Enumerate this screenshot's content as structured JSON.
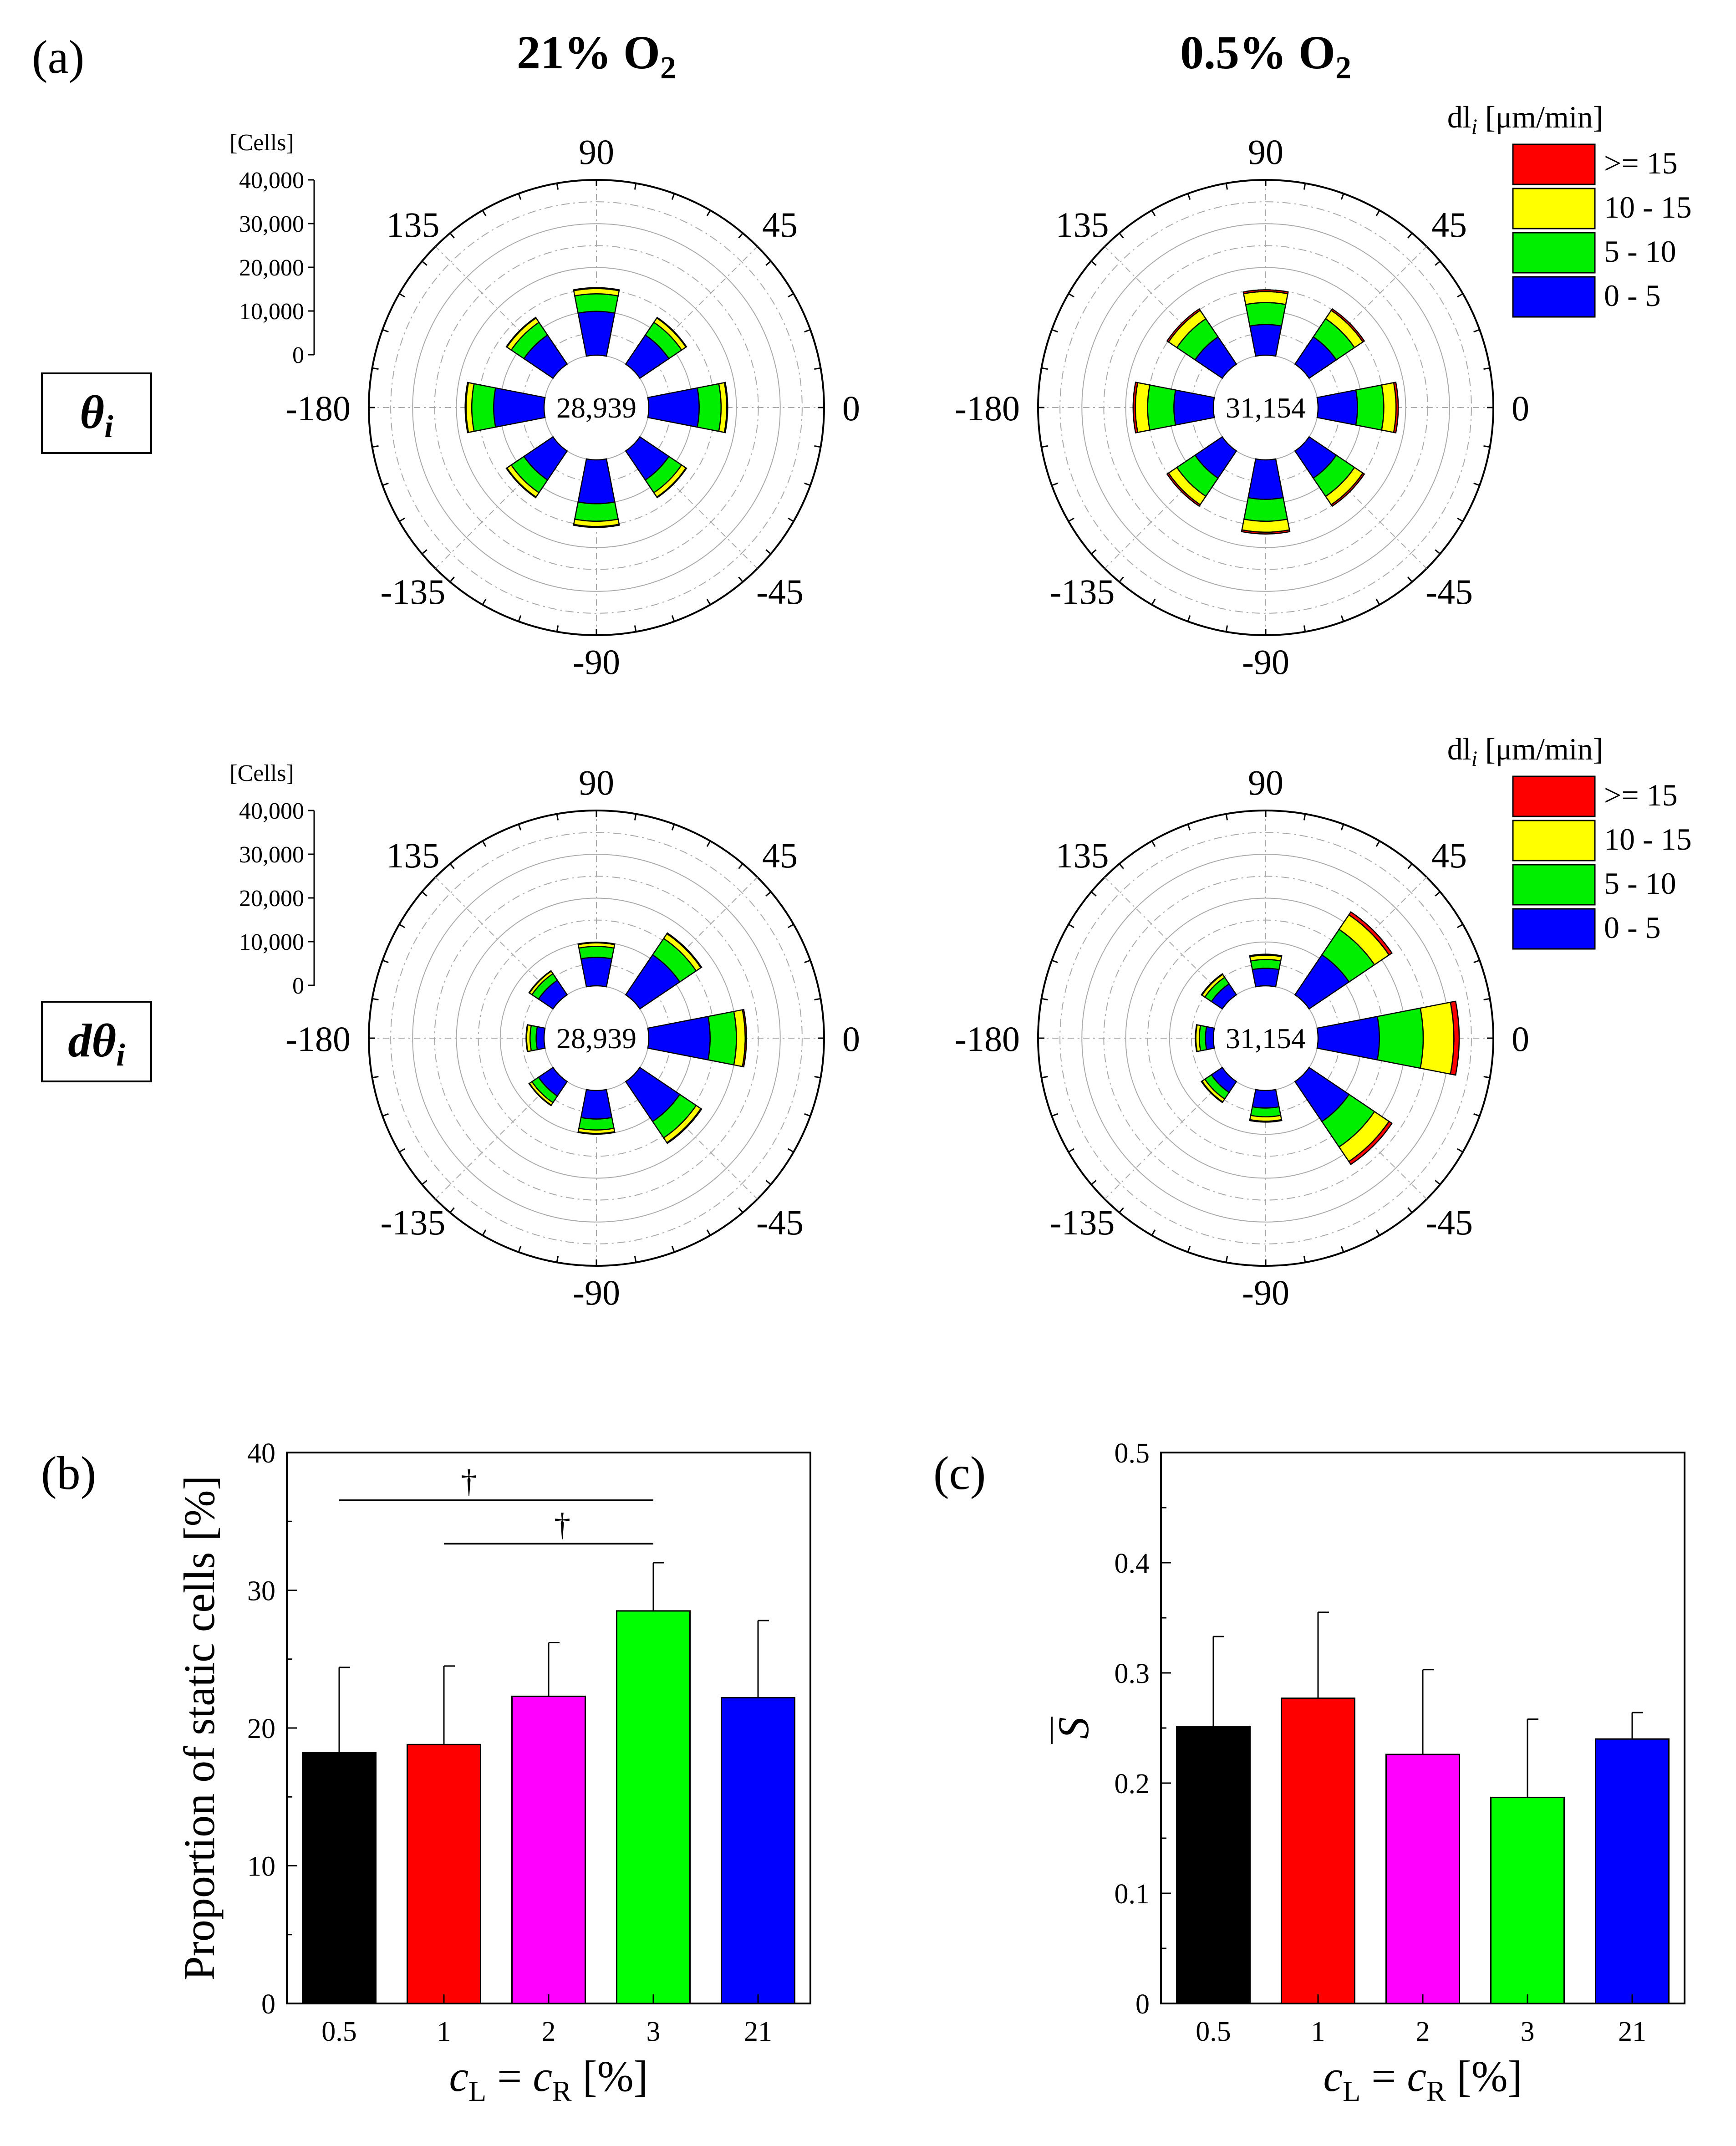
{
  "panel_labels": {
    "a": "(a)",
    "b": "(b)",
    "c": "(c)"
  },
  "columns": [
    "21% O",
    "0.5% O"
  ],
  "row_labels": {
    "theta": "θ",
    "dtheta": "dθ",
    "sub": "i"
  },
  "legend": {
    "title": "dl",
    "title_sub": "i",
    "title_unit": " [μm/min]",
    "items": [
      {
        "label": ">= 15",
        "color": "#ff0000"
      },
      {
        "label": "10 - 15",
        "color": "#ffff00"
      },
      {
        "label": "5 - 10",
        "color": "#00ee00"
      },
      {
        "label": "0 - 5",
        "color": "#0000ff"
      }
    ]
  },
  "polar_scale": {
    "unit": "[Cells]",
    "ticks": [
      "40,000",
      "30,000",
      "20,000",
      "10,000",
      "0"
    ]
  },
  "angle_labels": [
    "0",
    "45",
    "90",
    "135",
    "-180",
    "-135",
    "-90",
    "-45"
  ],
  "chart_data": [
    {
      "type": "polar-stacked-bar",
      "id": "theta-21",
      "row": "θi",
      "condition": "21% O2",
      "total": "28,939",
      "radial_range": [
        0,
        40000
      ],
      "directions": [
        0,
        45,
        90,
        135,
        180,
        -135,
        -90,
        -45
      ],
      "series": [
        {
          "name": "0 - 5",
          "values": [
            11500,
            8000,
            10000,
            8000,
            11500,
            8000,
            10000,
            8000
          ]
        },
        {
          "name": "5 - 10",
          "values": [
            5000,
            3500,
            4000,
            3500,
            5000,
            3500,
            4000,
            3500
          ]
        },
        {
          "name": "10 - 15",
          "values": [
            1300,
            1200,
            1200,
            1200,
            1300,
            1200,
            1200,
            1200
          ]
        },
        {
          "name": ">= 15",
          "values": [
            200,
            150,
            200,
            150,
            200,
            150,
            200,
            150
          ]
        }
      ]
    },
    {
      "type": "polar-stacked-bar",
      "id": "theta-05",
      "row": "θi",
      "condition": "0.5% O2",
      "total": "31,154",
      "radial_range": [
        0,
        40000
      ],
      "directions": [
        0,
        45,
        90,
        135,
        180,
        -135,
        -90,
        -45
      ],
      "series": [
        {
          "name": "0 - 5",
          "values": [
            9000,
            7500,
            7000,
            7500,
            9000,
            7500,
            9000,
            7500
          ]
        },
        {
          "name": "5 - 10",
          "values": [
            6000,
            5000,
            5000,
            5000,
            6000,
            5000,
            5000,
            5000
          ]
        },
        {
          "name": "10 - 15",
          "values": [
            2800,
            2300,
            2500,
            2300,
            2800,
            2300,
            2500,
            2300
          ]
        },
        {
          "name": ">= 15",
          "values": [
            500,
            400,
            400,
            400,
            500,
            400,
            400,
            400
          ]
        }
      ]
    },
    {
      "type": "polar-stacked-bar",
      "id": "dtheta-21",
      "row": "dθi",
      "condition": "21% O2",
      "total": "28,939",
      "radial_range": [
        0,
        40000
      ],
      "directions": [
        0,
        45,
        90,
        135,
        180,
        -135,
        -90,
        -45
      ],
      "series": [
        {
          "name": "0 - 5",
          "values": [
            14000,
            11000,
            6500,
            4000,
            1800,
            4000,
            6500,
            11000
          ]
        },
        {
          "name": "5 - 10",
          "values": [
            6000,
            4500,
            2500,
            1800,
            1400,
            1800,
            2500,
            4500
          ]
        },
        {
          "name": "10 - 15",
          "values": [
            2000,
            1300,
            800,
            700,
            800,
            700,
            800,
            1300
          ]
        },
        {
          "name": ">= 15",
          "values": [
            300,
            200,
            150,
            100,
            100,
            100,
            150,
            200
          ]
        }
      ]
    },
    {
      "type": "polar-stacked-bar",
      "id": "dtheta-05",
      "row": "dθi",
      "condition": "0.5% O2",
      "total": "31,154",
      "radial_range": [
        0,
        40000
      ],
      "directions": [
        0,
        45,
        90,
        135,
        180,
        -135,
        -90,
        -45
      ],
      "series": [
        {
          "name": "0 - 5",
          "values": [
            14000,
            11000,
            4000,
            3000,
            1800,
            3000,
            4000,
            11000
          ]
        },
        {
          "name": "5 - 10",
          "values": [
            10000,
            7000,
            2000,
            1800,
            1400,
            1800,
            2000,
            7000
          ]
        },
        {
          "name": "10 - 15",
          "values": [
            7000,
            4000,
            1000,
            800,
            800,
            800,
            1000,
            4000
          ]
        },
        {
          "name": ">= 15",
          "values": [
            1200,
            800,
            200,
            150,
            100,
            150,
            200,
            800
          ]
        }
      ]
    },
    {
      "type": "bar",
      "id": "chart-b",
      "title": "",
      "categories": [
        "0.5",
        "1",
        "2",
        "3",
        "21"
      ],
      "values": [
        18.2,
        18.8,
        22.3,
        28.5,
        22.2
      ],
      "errors": [
        6.2,
        5.7,
        3.9,
        3.5,
        5.6
      ],
      "colors": [
        "#000000",
        "#ff0000",
        "#ff00ff",
        "#00ff00",
        "#0000ff"
      ],
      "ylabel": "Proportion of static cells [%]",
      "xlabel": "cL = cR [%]",
      "ylim": [
        0,
        40
      ],
      "yticks": [
        "0",
        "10",
        "20",
        "30",
        "40"
      ],
      "significance": [
        {
          "from": "0.5",
          "to": "3",
          "symbol": "†"
        },
        {
          "from": "1",
          "to": "3",
          "symbol": "†"
        }
      ]
    },
    {
      "type": "bar",
      "id": "chart-c",
      "title": "",
      "categories": [
        "0.5",
        "1",
        "2",
        "3",
        "21"
      ],
      "values": [
        0.251,
        0.277,
        0.226,
        0.187,
        0.24
      ],
      "errors": [
        0.082,
        0.078,
        0.077,
        0.071,
        0.024
      ],
      "colors": [
        "#000000",
        "#ff0000",
        "#ff00ff",
        "#00ff00",
        "#0000ff"
      ],
      "ylabel": "S",
      "xlabel": "cL = cR [%]",
      "ylim": [
        0,
        0.5
      ],
      "yticks": [
        "0",
        "0.1",
        "0.2",
        "0.3",
        "0.4",
        "0.5"
      ]
    }
  ],
  "xlabel_parts": {
    "c": "c",
    "L": "L",
    "R": "R",
    "eq": " = ",
    "unit": " [%]"
  },
  "o2_sub": "2"
}
